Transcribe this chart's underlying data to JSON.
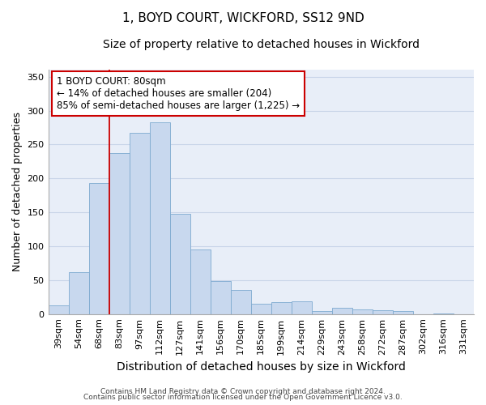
{
  "title": "1, BOYD COURT, WICKFORD, SS12 9ND",
  "subtitle": "Size of property relative to detached houses in Wickford",
  "xlabel": "Distribution of detached houses by size in Wickford",
  "ylabel": "Number of detached properties",
  "categories": [
    "39sqm",
    "54sqm",
    "68sqm",
    "83sqm",
    "97sqm",
    "112sqm",
    "127sqm",
    "141sqm",
    "156sqm",
    "170sqm",
    "185sqm",
    "199sqm",
    "214sqm",
    "229sqm",
    "243sqm",
    "258sqm",
    "272sqm",
    "287sqm",
    "302sqm",
    "316sqm",
    "331sqm"
  ],
  "values": [
    13,
    62,
    193,
    237,
    267,
    283,
    148,
    95,
    48,
    35,
    15,
    17,
    19,
    4,
    9,
    7,
    5,
    4,
    0,
    1,
    0
  ],
  "bar_color": "#c8d8ee",
  "bar_edge_color": "#7eaad0",
  "vline_color": "#cc0000",
  "vline_x": 3,
  "annotation_line1": "1 BOYD COURT: 80sqm",
  "annotation_line2": "← 14% of detached houses are smaller (204)",
  "annotation_line3": "85% of semi-detached houses are larger (1,225) →",
  "annotation_box_color": "#ffffff",
  "annotation_box_edge_color": "#cc0000",
  "ylim": [
    0,
    360
  ],
  "yticks": [
    0,
    50,
    100,
    150,
    200,
    250,
    300,
    350
  ],
  "grid_color": "#c8d4e8",
  "background_color": "#e8eef8",
  "footer_line1": "Contains HM Land Registry data © Crown copyright and database right 2024.",
  "footer_line2": "Contains public sector information licensed under the Open Government Licence v3.0.",
  "title_fontsize": 11,
  "subtitle_fontsize": 10,
  "tick_fontsize": 8,
  "ylabel_fontsize": 9,
  "xlabel_fontsize": 10,
  "annotation_fontsize": 8.5,
  "footer_fontsize": 6.5
}
